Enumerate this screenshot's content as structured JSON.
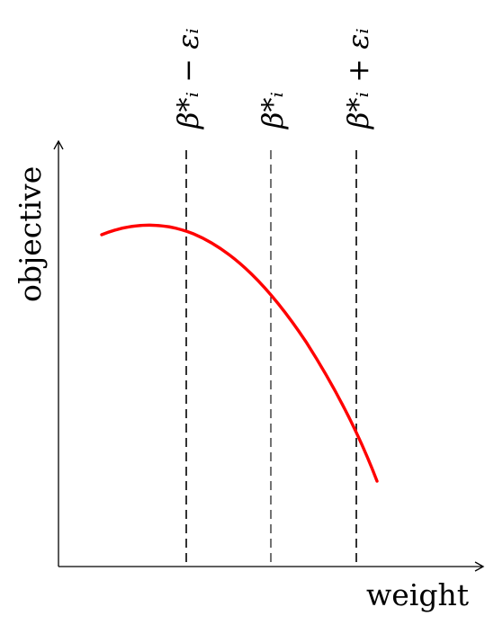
{
  "axes": {
    "x_label": "weight",
    "y_label": "objective"
  },
  "markers": [
    {
      "label": "β*ᵢ − εᵢ"
    },
    {
      "label": "β*ᵢ"
    },
    {
      "label": "β*ᵢ + εᵢ"
    }
  ],
  "colors": {
    "curve": "#ff0000",
    "axes": "#000000"
  }
}
